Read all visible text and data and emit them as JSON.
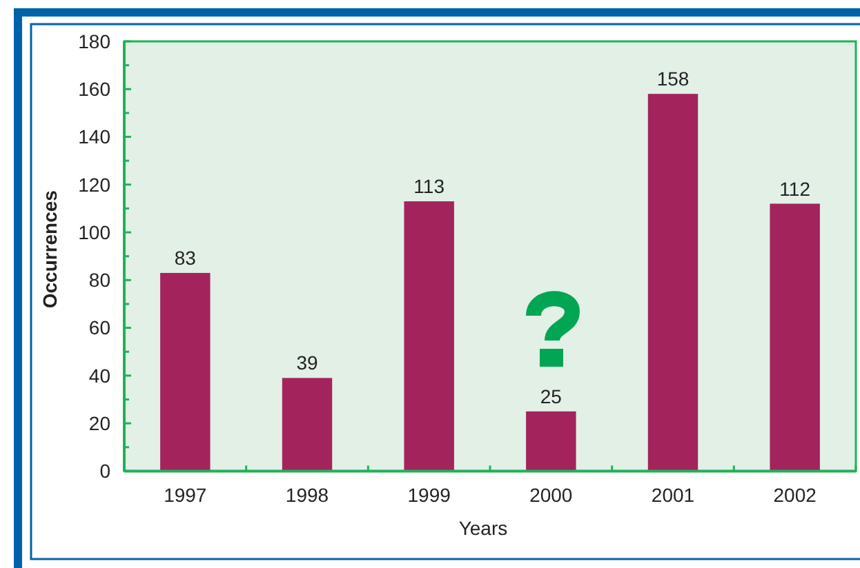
{
  "chart_data": {
    "type": "bar",
    "xlabel": "Years",
    "ylabel": "Occurrences",
    "categories": [
      "1997",
      "1998",
      "1999",
      "2000",
      "2001",
      "2002"
    ],
    "values": [
      83,
      39,
      113,
      25,
      158,
      112
    ],
    "color": "#a3245c",
    "ylim": [
      0,
      180
    ],
    "yticks": [
      0,
      {
        "value": 10,
        "label": null
      },
      20,
      {
        "value": 30,
        "label": null
      },
      40,
      {
        "value": 50,
        "label": null
      },
      60,
      {
        "value": 70,
        "label": null
      },
      80,
      {
        "value": 90,
        "label": null
      },
      100,
      {
        "value": 110,
        "label": null
      },
      120,
      {
        "value": 130,
        "label": null
      },
      140,
      {
        "value": 150,
        "label": null
      },
      160,
      {
        "value": 170,
        "label": null
      },
      180
    ],
    "data_labels": true
  }
}
